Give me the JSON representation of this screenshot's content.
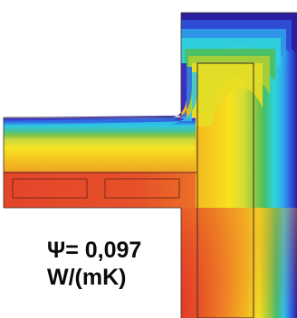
{
  "annotation": {
    "psi_line": "Ψ= 0,097",
    "unit_line": "W/(mK)"
  },
  "colors": {
    "cold": "#2a1fa0",
    "blue": "#2f7be8",
    "cyan": "#2fd2e0",
    "green": "#49b44a",
    "lime": "#b9d63a",
    "yellow": "#f4e21a",
    "orange": "#f08a25",
    "warm": "#e23a27",
    "outline": "#3a2a2a"
  }
}
